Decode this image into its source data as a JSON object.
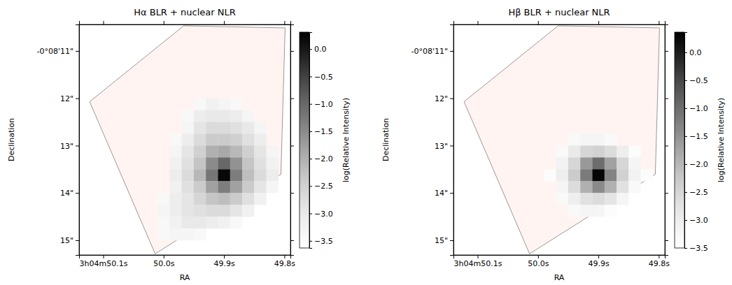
{
  "chart_data": [
    {
      "type": "heatmap",
      "title": "Hα BLR + nuclear NLR",
      "x_label": "RA",
      "y_label": "Declination",
      "xlim": [
        50.14,
        49.79
      ],
      "xticks": [
        {
          "value": 50.1,
          "label": "3h04m50.1s"
        },
        {
          "value": 50.0,
          "label": "50.0s"
        },
        {
          "value": 49.9,
          "label": "49.9s"
        },
        {
          "value": 49.8,
          "label": "49.8s"
        }
      ],
      "ylim": [
        10.44,
        15.31
      ],
      "yticks": [
        {
          "value": 11,
          "label": "-0°08'11\""
        },
        {
          "value": 12,
          "label": "12\""
        },
        {
          "value": 13,
          "label": "13\""
        },
        {
          "value": 14,
          "label": "14\""
        },
        {
          "value": 15,
          "label": "15\""
        }
      ],
      "color": "greys",
      "x_edges": [
        50.03,
        50.01,
        49.99,
        49.97,
        49.95,
        49.93,
        49.91,
        49.89,
        49.87,
        49.85,
        49.83,
        49.81
      ],
      "y_edges": [
        12.0,
        12.25,
        12.5,
        12.75,
        13.0,
        13.25,
        13.5,
        13.75,
        14.0,
        14.25,
        14.5,
        14.75,
        15.0
      ],
      "cells": [
        [
          null,
          null,
          null,
          null,
          -3.4,
          -3.2,
          -3.3,
          -3.4,
          null,
          null,
          null
        ],
        [
          null,
          null,
          null,
          -3.4,
          -3.1,
          -3.0,
          -3.0,
          -3.1,
          -3.3,
          null,
          null
        ],
        [
          null,
          null,
          null,
          -3.3,
          -2.9,
          -2.7,
          -2.7,
          -2.8,
          -3.0,
          -3.3,
          null
        ],
        [
          null,
          null,
          -3.4,
          -3.1,
          -2.7,
          -2.4,
          -2.4,
          -2.5,
          -2.8,
          -3.1,
          null
        ],
        [
          null,
          null,
          -3.3,
          -2.9,
          -2.5,
          -2.0,
          -1.9,
          -2.1,
          -2.5,
          -2.9,
          -3.3
        ],
        [
          null,
          null,
          -3.2,
          -2.8,
          -2.3,
          -1.5,
          -1.0,
          -1.6,
          -2.3,
          -2.8,
          -3.2
        ],
        [
          null,
          null,
          -3.1,
          -2.7,
          -2.1,
          -1.2,
          0.2,
          -1.3,
          -2.2,
          -2.7,
          -3.1
        ],
        [
          null,
          null,
          -3.2,
          -2.8,
          -2.4,
          -1.8,
          -1.3,
          -1.8,
          -2.4,
          -2.9,
          -3.3
        ],
        [
          null,
          -3.4,
          -3.1,
          -2.9,
          -2.6,
          -2.3,
          -2.2,
          -2.4,
          -2.8,
          -3.2,
          null
        ],
        [
          null,
          -3.3,
          -3.1,
          -2.9,
          -2.8,
          -2.7,
          -2.7,
          -2.9,
          -3.2,
          null,
          null
        ],
        [
          null,
          -3.4,
          -3.2,
          -3.0,
          -3.0,
          -3.1,
          -3.2,
          -3.4,
          null,
          null,
          null
        ],
        [
          null,
          -3.4,
          -3.3,
          -3.3,
          -3.4,
          null,
          null,
          null,
          null,
          null,
          null
        ]
      ],
      "colorbar": {
        "label": "log(Relative Intensity)",
        "range": [
          -3.63,
          0.31
        ],
        "ticks": [
          {
            "value": 0,
            "label": "0.0"
          },
          {
            "value": -0.5,
            "label": "−0.5"
          },
          {
            "value": -1.0,
            "label": "−1.0"
          },
          {
            "value": -1.5,
            "label": "−1.5"
          },
          {
            "value": -2.0,
            "label": "−2.0"
          },
          {
            "value": -2.5,
            "label": "−2.5"
          },
          {
            "value": -3.0,
            "label": "−3.0"
          },
          {
            "value": -3.5,
            "label": "−3.5"
          }
        ]
      }
    },
    {
      "type": "heatmap",
      "title": "Hβ BLR + nuclear NLR",
      "x_label": "RA",
      "y_label": "Declination",
      "xlim": [
        50.14,
        49.79
      ],
      "xticks": [
        {
          "value": 50.1,
          "label": "3h04m50.1s"
        },
        {
          "value": 50.0,
          "label": "50.0s"
        },
        {
          "value": 49.9,
          "label": "49.9s"
        },
        {
          "value": 49.8,
          "label": "49.8s"
        }
      ],
      "ylim": [
        10.44,
        15.31
      ],
      "yticks": [
        {
          "value": 11,
          "label": "-0°08'11\""
        },
        {
          "value": 12,
          "label": "12\""
        },
        {
          "value": 13,
          "label": "13\""
        },
        {
          "value": 14,
          "label": "14\""
        },
        {
          "value": 15,
          "label": "15\""
        }
      ],
      "color": "greys",
      "x_edges": [
        50.03,
        50.01,
        49.99,
        49.97,
        49.95,
        49.93,
        49.91,
        49.89,
        49.87,
        49.85,
        49.83,
        49.81
      ],
      "y_edges": [
        12.0,
        12.25,
        12.5,
        12.75,
        13.0,
        13.25,
        13.5,
        13.75,
        14.0,
        14.25,
        14.5,
        14.75,
        15.0
      ],
      "cells": [
        [
          null,
          null,
          null,
          null,
          null,
          null,
          null,
          null,
          null,
          null,
          null
        ],
        [
          null,
          null,
          null,
          null,
          null,
          null,
          null,
          null,
          null,
          null,
          null
        ],
        [
          null,
          null,
          null,
          null,
          null,
          null,
          null,
          null,
          null,
          null,
          null
        ],
        [
          null,
          null,
          null,
          null,
          -3.3,
          -3.2,
          -3.2,
          -3.3,
          null,
          null,
          null
        ],
        [
          null,
          null,
          null,
          -3.3,
          -2.9,
          -2.5,
          -2.4,
          -2.6,
          -3.0,
          -3.4,
          null
        ],
        [
          null,
          null,
          null,
          -3.1,
          -2.5,
          -1.6,
          -1.0,
          -1.7,
          -2.5,
          -3.2,
          null
        ],
        [
          null,
          null,
          -3.4,
          -3.0,
          -2.3,
          -1.2,
          0.3,
          -1.3,
          -2.4,
          -3.1,
          -3.4
        ],
        [
          null,
          null,
          null,
          -3.2,
          -2.6,
          -1.9,
          -1.4,
          -1.9,
          -2.7,
          -3.3,
          null
        ],
        [
          null,
          null,
          null,
          -3.3,
          -3.0,
          -2.7,
          -2.6,
          -2.8,
          -3.2,
          null,
          null
        ],
        [
          null,
          null,
          null,
          null,
          -3.3,
          -3.2,
          -3.2,
          -3.4,
          null,
          null,
          null
        ],
        [
          null,
          null,
          null,
          null,
          null,
          null,
          null,
          null,
          null,
          null,
          null
        ],
        [
          null,
          null,
          null,
          null,
          null,
          null,
          null,
          null,
          null,
          null,
          null
        ]
      ],
      "colorbar": {
        "label": "log(Relative Intensity)",
        "range": [
          -3.5,
          0.36
        ],
        "ticks": [
          {
            "value": 0,
            "label": "0.0"
          },
          {
            "value": -0.5,
            "label": "−0.5"
          },
          {
            "value": -1.0,
            "label": "−1.0"
          },
          {
            "value": -1.5,
            "label": "−1.5"
          },
          {
            "value": -2.0,
            "label": "−2.0"
          },
          {
            "value": -2.5,
            "label": "−2.5"
          },
          {
            "value": -3.0,
            "label": "−3.0"
          },
          {
            "value": -3.5,
            "label": "−3.5"
          }
        ]
      }
    }
  ]
}
